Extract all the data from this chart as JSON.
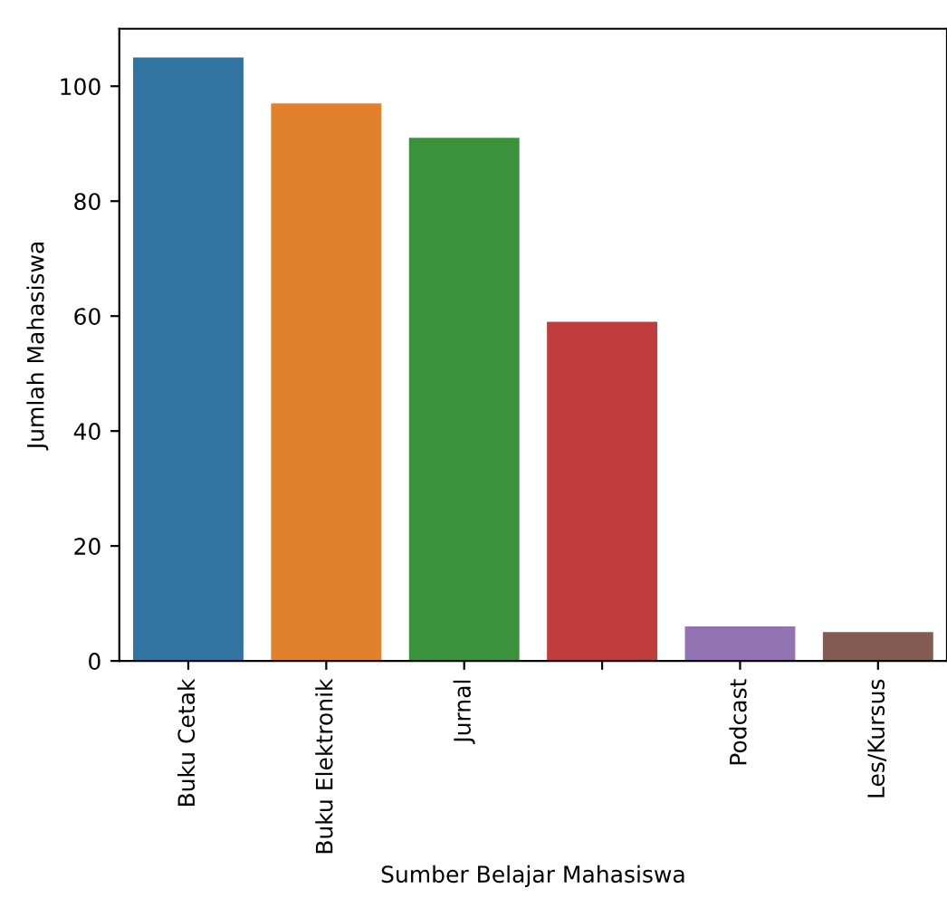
{
  "chart_data": {
    "type": "bar",
    "xlabel": "Sumber Belajar Mahasiswa",
    "ylabel": "Jumlah Mahasiswa",
    "categories": [
      "Buku Cetak",
      "Buku Elektronik",
      "Jurnal",
      null,
      "Podcast",
      "Les/Kursus"
    ],
    "values": [
      105,
      97,
      91,
      59,
      6,
      5
    ],
    "colors": [
      "#3274a1",
      "#e1812c",
      "#3a923a",
      "#c03d3e",
      "#9372b2",
      "#845b53"
    ],
    "ylim": [
      0,
      110
    ],
    "yticks": [
      0,
      20,
      40,
      60,
      80,
      100
    ],
    "grid": false,
    "legend": false
  }
}
